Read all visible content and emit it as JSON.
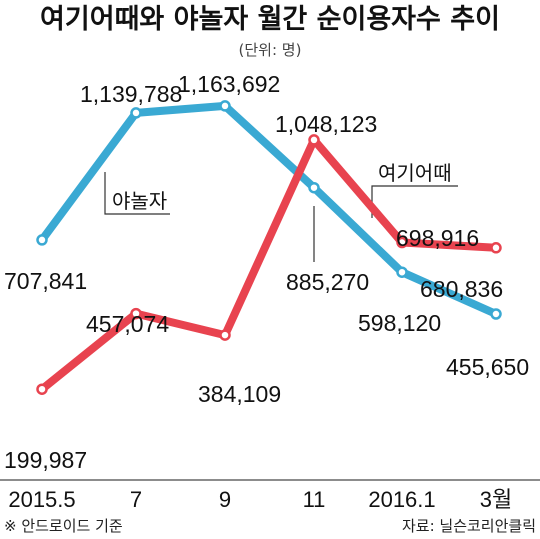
{
  "chart_data": {
    "type": "line",
    "title": "여기어때와 야놀자 월간 순이용자수 추이",
    "unit": "(단위: 명)",
    "categories": [
      "2015.5",
      "7",
      "9",
      "11",
      "2016.1",
      "3월"
    ],
    "series": [
      {
        "name": "야놀자",
        "color": "#3aa9d3",
        "values": [
          707841,
          1139788,
          1163692,
          885270,
          598120,
          455650
        ],
        "labels": [
          "707,841",
          "1,139,788",
          "1,163,692",
          "885,270",
          "598,120",
          "455,650"
        ]
      },
      {
        "name": "여기어때",
        "color": "#e8434f",
        "values": [
          199987,
          457074,
          384109,
          1048123,
          698916,
          680836
        ],
        "labels": [
          "199,987",
          "457,074",
          "384,109",
          "1,048,123",
          "698,916",
          "680,836"
        ]
      }
    ],
    "ylim": [
      0,
      1250000
    ],
    "grid": false,
    "footnote": "※ 안드로이드 기준",
    "source": "자료: 닐슨코리안클릭"
  }
}
